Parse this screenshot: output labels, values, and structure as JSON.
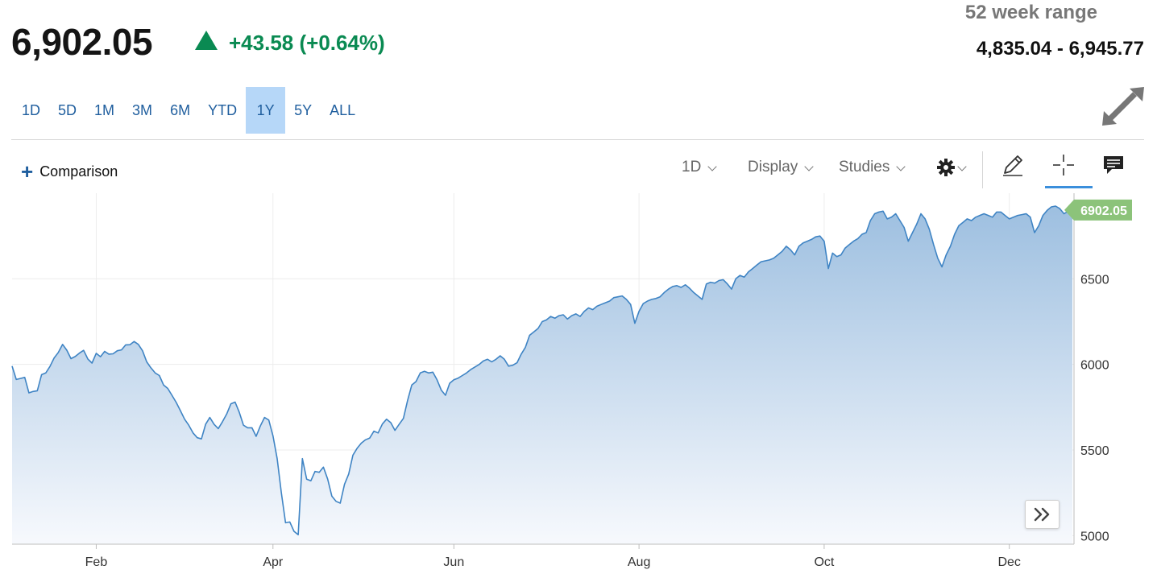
{
  "quote": {
    "price": "6,902.05",
    "change": "+43.58 (+0.64%)",
    "direction_icon": "up-triangle-icon",
    "change_color": "#0a8a52"
  },
  "week52": {
    "label": "52 week range",
    "value": "4,835.04 - 6,945.77"
  },
  "time_ranges": [
    {
      "label": "1D",
      "active": false
    },
    {
      "label": "5D",
      "active": false
    },
    {
      "label": "1M",
      "active": false
    },
    {
      "label": "3M",
      "active": false
    },
    {
      "label": "6M",
      "active": false
    },
    {
      "label": "YTD",
      "active": false
    },
    {
      "label": "1Y",
      "active": true
    },
    {
      "label": "5Y",
      "active": false
    },
    {
      "label": "ALL",
      "active": false
    }
  ],
  "toolbar": {
    "comparison_label": "Comparison",
    "interval_label": "1D",
    "display_label": "Display",
    "studies_label": "Studies",
    "settings_icon": "gear-icon",
    "draw_icon": "pencil-icon",
    "crosshair_icon": "crosshair-icon",
    "comment_icon": "comment-icon",
    "expand_icon": "expand-arrows-icon",
    "scroll_forward_icon": "double-chevron-right-icon"
  },
  "chart_data": {
    "type": "area",
    "title": "",
    "xlabel": "",
    "ylabel": "",
    "line_color": "#3f84c4",
    "fill_color_top": "#9dbfe0",
    "fill_color_bottom": "#f7f9fd",
    "last_value_label": "6902.05",
    "last_value_color": "#8cc37a",
    "grid": true,
    "ylim": [
      4950,
      7000
    ],
    "y_ticks": [
      5000,
      5500,
      6000,
      6500
    ],
    "x_tick_labels": [
      "Feb",
      "Apr",
      "Jun",
      "Aug",
      "Oct",
      "Dec"
    ],
    "x_tick_index": [
      20,
      62,
      105,
      149,
      193,
      237
    ],
    "y_values": [
      5990,
      5912,
      5918,
      5924,
      5834,
      5842,
      5846,
      5940,
      5950,
      5988,
      6038,
      6070,
      6117,
      6083,
      6034,
      6046,
      6066,
      6082,
      6032,
      6008,
      6065,
      6045,
      6076,
      6060,
      6062,
      6080,
      6085,
      6114,
      6115,
      6134,
      6117,
      6080,
      6015,
      5980,
      5950,
      5935,
      5880,
      5860,
      5820,
      5778,
      5730,
      5680,
      5645,
      5600,
      5572,
      5565,
      5650,
      5690,
      5650,
      5625,
      5665,
      5710,
      5770,
      5780,
      5720,
      5645,
      5630,
      5630,
      5580,
      5640,
      5690,
      5675,
      5583,
      5450,
      5250,
      5075,
      5080,
      5025,
      5005,
      5450,
      5330,
      5320,
      5375,
      5370,
      5400,
      5330,
      5230,
      5200,
      5190,
      5300,
      5360,
      5470,
      5510,
      5540,
      5560,
      5570,
      5610,
      5600,
      5652,
      5680,
      5660,
      5615,
      5650,
      5685,
      5790,
      5880,
      5900,
      5950,
      5960,
      5950,
      5955,
      5910,
      5850,
      5820,
      5890,
      5910,
      5920,
      5935,
      5950,
      5970,
      5985,
      6000,
      6020,
      6030,
      6015,
      6030,
      6050,
      6030,
      5990,
      5995,
      6010,
      6060,
      6100,
      6170,
      6190,
      6210,
      6250,
      6260,
      6280,
      6270,
      6285,
      6290,
      6265,
      6285,
      6295,
      6280,
      6310,
      6330,
      6320,
      6340,
      6350,
      6360,
      6370,
      6390,
      6395,
      6400,
      6380,
      6350,
      6240,
      6310,
      6355,
      6370,
      6380,
      6385,
      6395,
      6420,
      6440,
      6455,
      6460,
      6450,
      6465,
      6445,
      6420,
      6400,
      6380,
      6470,
      6480,
      6475,
      6490,
      6495,
      6470,
      6440,
      6500,
      6520,
      6510,
      6540,
      6560,
      6580,
      6600,
      6605,
      6610,
      6620,
      6640,
      6660,
      6690,
      6670,
      6640,
      6690,
      6710,
      6720,
      6730,
      6745,
      6750,
      6720,
      6560,
      6650,
      6630,
      6640,
      6680,
      6700,
      6720,
      6735,
      6760,
      6770,
      6840,
      6880,
      6890,
      6895,
      6850,
      6860,
      6880,
      6840,
      6800,
      6720,
      6770,
      6820,
      6880,
      6850,
      6790,
      6700,
      6620,
      6570,
      6640,
      6690,
      6760,
      6810,
      6830,
      6850,
      6840,
      6860,
      6870,
      6880,
      6870,
      6860,
      6890,
      6890,
      6870,
      6850,
      6860,
      6870,
      6875,
      6880,
      6860,
      6770,
      6810,
      6870,
      6900,
      6920,
      6925,
      6910,
      6880,
      6895,
      6902.05
    ]
  }
}
